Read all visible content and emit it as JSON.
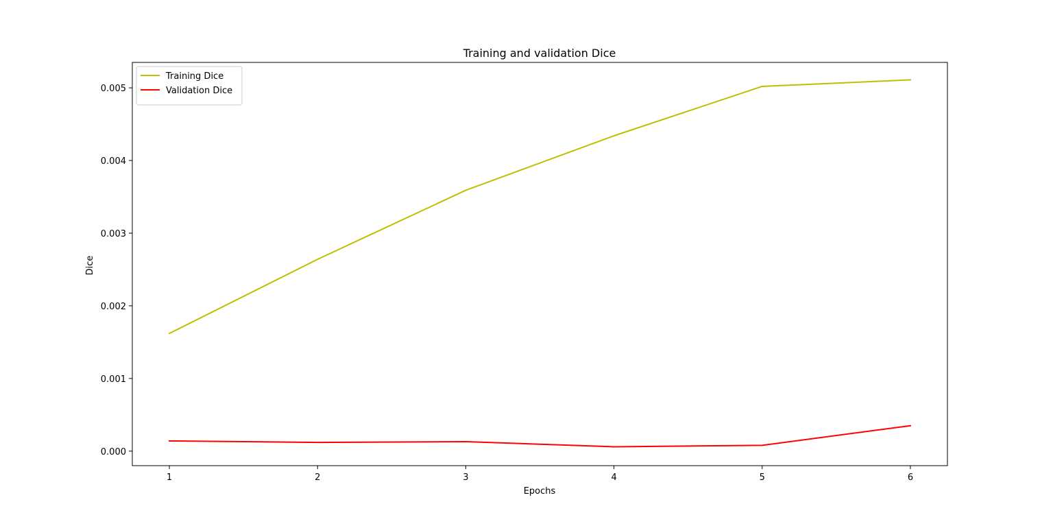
{
  "chart_data": {
    "type": "line",
    "title": "Training and validation Dice",
    "xlabel": "Epochs",
    "ylabel": "Dice",
    "x": [
      1,
      2,
      3,
      4,
      5,
      6
    ],
    "xlim": [
      0.75,
      6.25
    ],
    "ylim": [
      -0.0002,
      0.00535
    ],
    "xticks": [
      1,
      2,
      3,
      4,
      5,
      6
    ],
    "xtick_labels": [
      "1",
      "2",
      "3",
      "4",
      "5",
      "6"
    ],
    "yticks": [
      0.0,
      0.001,
      0.002,
      0.003,
      0.004,
      0.005
    ],
    "ytick_labels": [
      "0.000",
      "0.001",
      "0.002",
      "0.003",
      "0.004",
      "0.005"
    ],
    "grid": false,
    "legend_position": "top-left",
    "series": [
      {
        "name": "Training Dice",
        "color": "#bfbf00",
        "values": [
          0.00162,
          0.00264,
          0.00359,
          0.00434,
          0.00502,
          0.00511
        ]
      },
      {
        "name": "Validation Dice",
        "color": "#ff0000",
        "values": [
          0.00014,
          0.00012,
          0.00013,
          6e-05,
          8e-05,
          0.00035
        ]
      }
    ]
  }
}
